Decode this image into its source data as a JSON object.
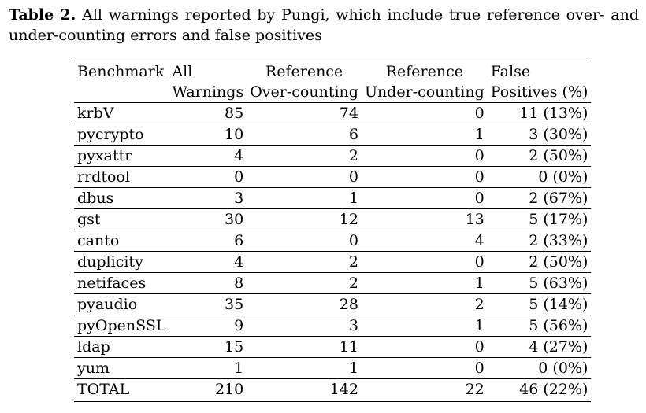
{
  "caption": {
    "label": "Table 2.",
    "text": "All warnings reported by Pungi, which include true reference over- and under-counting errors and false positives"
  },
  "table": {
    "header_row1": [
      "Benchmark",
      "All",
      "Reference",
      "Reference",
      "False"
    ],
    "header_row2": [
      "",
      "Warnings",
      "Over-counting",
      "Under-counting",
      "Positives (%)"
    ],
    "rows": [
      {
        "benchmark": "krbV",
        "all": "85",
        "over": "74",
        "under": "0",
        "fp": "11 (13%)"
      },
      {
        "benchmark": "pycrypto",
        "all": "10",
        "over": "6",
        "under": "1",
        "fp": "3 (30%)"
      },
      {
        "benchmark": "pyxattr",
        "all": "4",
        "over": "2",
        "under": "0",
        "fp": "2 (50%)"
      },
      {
        "benchmark": "rrdtool",
        "all": "0",
        "over": "0",
        "under": "0",
        "fp": "0 (0%)"
      },
      {
        "benchmark": "dbus",
        "all": "3",
        "over": "1",
        "under": "0",
        "fp": "2 (67%)"
      },
      {
        "benchmark": "gst",
        "all": "30",
        "over": "12",
        "under": "13",
        "fp": "5 (17%)"
      },
      {
        "benchmark": "canto",
        "all": "6",
        "over": "0",
        "under": "4",
        "fp": "2 (33%)"
      },
      {
        "benchmark": "duplicity",
        "all": "4",
        "over": "2",
        "under": "0",
        "fp": "2 (50%)"
      },
      {
        "benchmark": "netifaces",
        "all": "8",
        "over": "2",
        "under": "1",
        "fp": "5 (63%)"
      },
      {
        "benchmark": "pyaudio",
        "all": "35",
        "over": "28",
        "under": "2",
        "fp": "5 (14%)"
      },
      {
        "benchmark": "pyOpenSSL",
        "all": "9",
        "over": "3",
        "under": "1",
        "fp": "5 (56%)"
      },
      {
        "benchmark": "ldap",
        "all": "15",
        "over": "11",
        "under": "0",
        "fp": "4 (27%)"
      },
      {
        "benchmark": "yum",
        "all": "1",
        "over": "1",
        "under": "0",
        "fp": "0 (0%)"
      }
    ],
    "total": {
      "benchmark": "TOTAL",
      "all": "210",
      "over": "142",
      "under": "22",
      "fp": "46 (22%)"
    }
  }
}
